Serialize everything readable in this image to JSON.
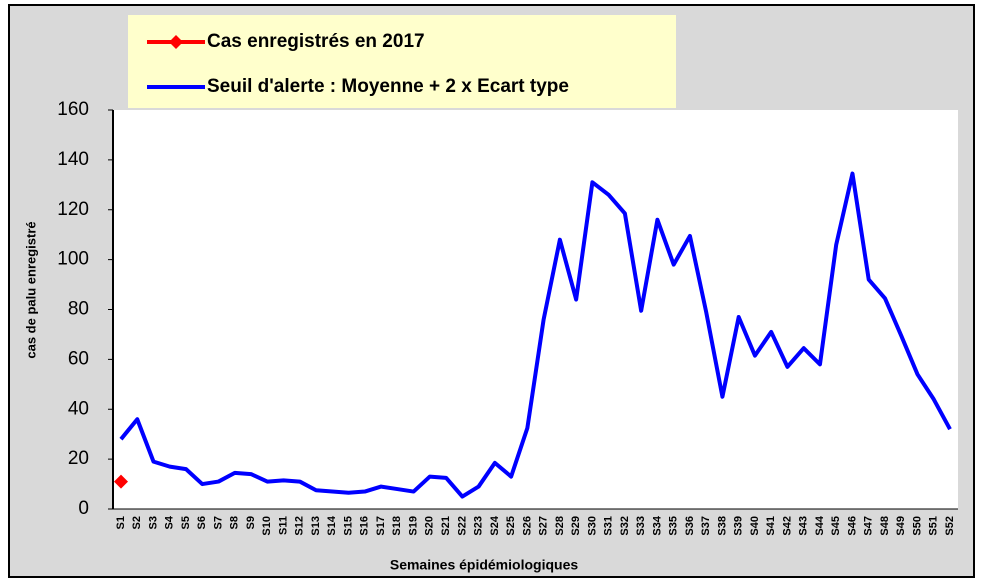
{
  "chart_data": {
    "type": "line",
    "y_label": "cas de palu enregistré",
    "x_label": "Semaines épidémiologiques",
    "categories": [
      "S1",
      "S2",
      "S3",
      "S4",
      "S5",
      "S6",
      "S7",
      "S8",
      "S9",
      "S10",
      "S11",
      "S12",
      "S13",
      "S14",
      "S15",
      "S16",
      "S17",
      "S18",
      "S19",
      "S20",
      "S21",
      "S22",
      "S23",
      "S24",
      "S25",
      "S26",
      "S27",
      "S28",
      "S29",
      "S30",
      "S31",
      "S32",
      "S33",
      "S34",
      "S35",
      "S36",
      "S37",
      "S38",
      "S39",
      "S40",
      "S41",
      "S42",
      "S43",
      "S44",
      "S45",
      "S46",
      "S47",
      "S48",
      "S49",
      "S50",
      "S51",
      "S52"
    ],
    "series": [
      {
        "name": "Cas enregistrés en 2017",
        "color": "#ff0000",
        "values": [
          11,
          null,
          null,
          null,
          null,
          null,
          null,
          null,
          null,
          null,
          null,
          null,
          null,
          null,
          null,
          null,
          null,
          null,
          null,
          null,
          null,
          null,
          null,
          null,
          null,
          null,
          null,
          null,
          null,
          null,
          null,
          null,
          null,
          null,
          null,
          null,
          null,
          null,
          null,
          null,
          null,
          null,
          null,
          null,
          null,
          null,
          null,
          null,
          null,
          null,
          null,
          null
        ]
      },
      {
        "name": "Seuil d'alerte : Moyenne + 2 x Ecart type",
        "color": "#0000ff",
        "values": [
          28,
          36,
          19,
          17,
          16,
          10,
          11,
          14.5,
          14,
          11,
          11.5,
          11,
          7.5,
          7,
          6.5,
          7,
          9,
          8,
          7,
          13,
          12.5,
          5,
          9,
          18.5,
          13,
          32.5,
          76,
          108,
          84,
          131,
          126,
          118.5,
          79.5,
          116,
          98,
          109.5,
          79,
          45,
          77,
          61.5,
          71,
          57,
          64.5,
          58,
          106,
          134.5,
          92,
          84.5,
          69.5,
          54,
          44,
          32
        ]
      }
    ],
    "ylim": [
      0,
      160
    ],
    "yticks": [
      0,
      20,
      40,
      60,
      80,
      100,
      120,
      140,
      160
    ],
    "grid": false
  }
}
